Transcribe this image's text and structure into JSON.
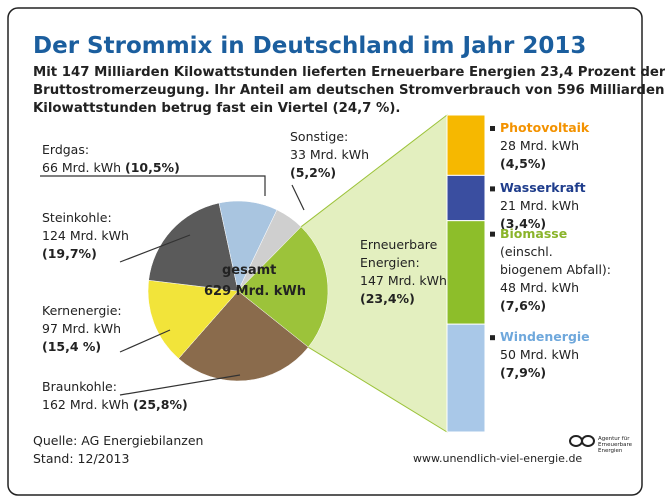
{
  "chart_data": [
    {
      "type": "pie",
      "title": "Der Strommix in Deutschland im Jahr 2013",
      "subtitle": [
        "Mit 147 Milliarden Kilowattstunden lieferten Erneuerbare Energien 23,4 Prozent der",
        "Bruttostromerzeugung. Ihr Anteil am deutschen Stromverbrauch von 596 Milliarden",
        "Kilowattstunden betrug fast ein Viertel (24,7 %)."
      ],
      "categories": [
        "Sonstige:",
        "Erneuerbare Energien:",
        "Braunkohle:",
        "Kernenergie:",
        "Steinkohle:",
        "Erdgas:"
      ],
      "values": [
        33,
        147,
        162,
        97,
        124,
        66
      ],
      "value_labels": [
        "33 Mrd. kWh",
        "147 Mrd. kWh",
        "162 Mrd. kWh",
        "97 Mrd. kWh",
        "124 Mrd. kWh",
        "66 Mrd. kWh"
      ],
      "share_labels": [
        "(5,2%)",
        "(23,4%)",
        "(25,8%)",
        "(15,4 %)",
        "(19,7%)",
        "(10,5%)"
      ],
      "colors": [
        "#cfcfcf",
        "#9cc33a",
        "#8a6b4c",
        "#f2e43a",
        "#5a5a5a",
        "#a9c5e0"
      ],
      "center_label": "gesamt",
      "total_label": "629 Mrd. kWh"
    },
    {
      "type": "stacked-bar",
      "categories": [
        "Photovoltaik",
        "Wasserkraft",
        "Biomasse",
        "Windenergie"
      ],
      "values": [
        28,
        21,
        48,
        50
      ],
      "value_labels": [
        "28 Mrd. kWh",
        "21 Mrd. kWh",
        "48 Mrd. kWh",
        "50 Mrd. kWh"
      ],
      "share_labels": [
        "(4,5%)",
        "(3,4%)",
        "(7,6%)",
        "(7,9%)"
      ],
      "colors": [
        "#f6b800",
        "#3a4ea0",
        "#8dbe2a",
        "#a9c8e8"
      ],
      "label_colors": [
        "#f39200",
        "#1f3d8c",
        "#8ab42a",
        "#6fa8dc"
      ],
      "biomass_note": "(einschl. biogenem Abfall):"
    }
  ],
  "footer": {
    "source": "Quelle:  AG Energiebilanzen",
    "date": "Stand: 12/2013",
    "url": "www.unendlich-viel-energie.de",
    "logo": "Agentur für Erneuerbare Energien"
  }
}
